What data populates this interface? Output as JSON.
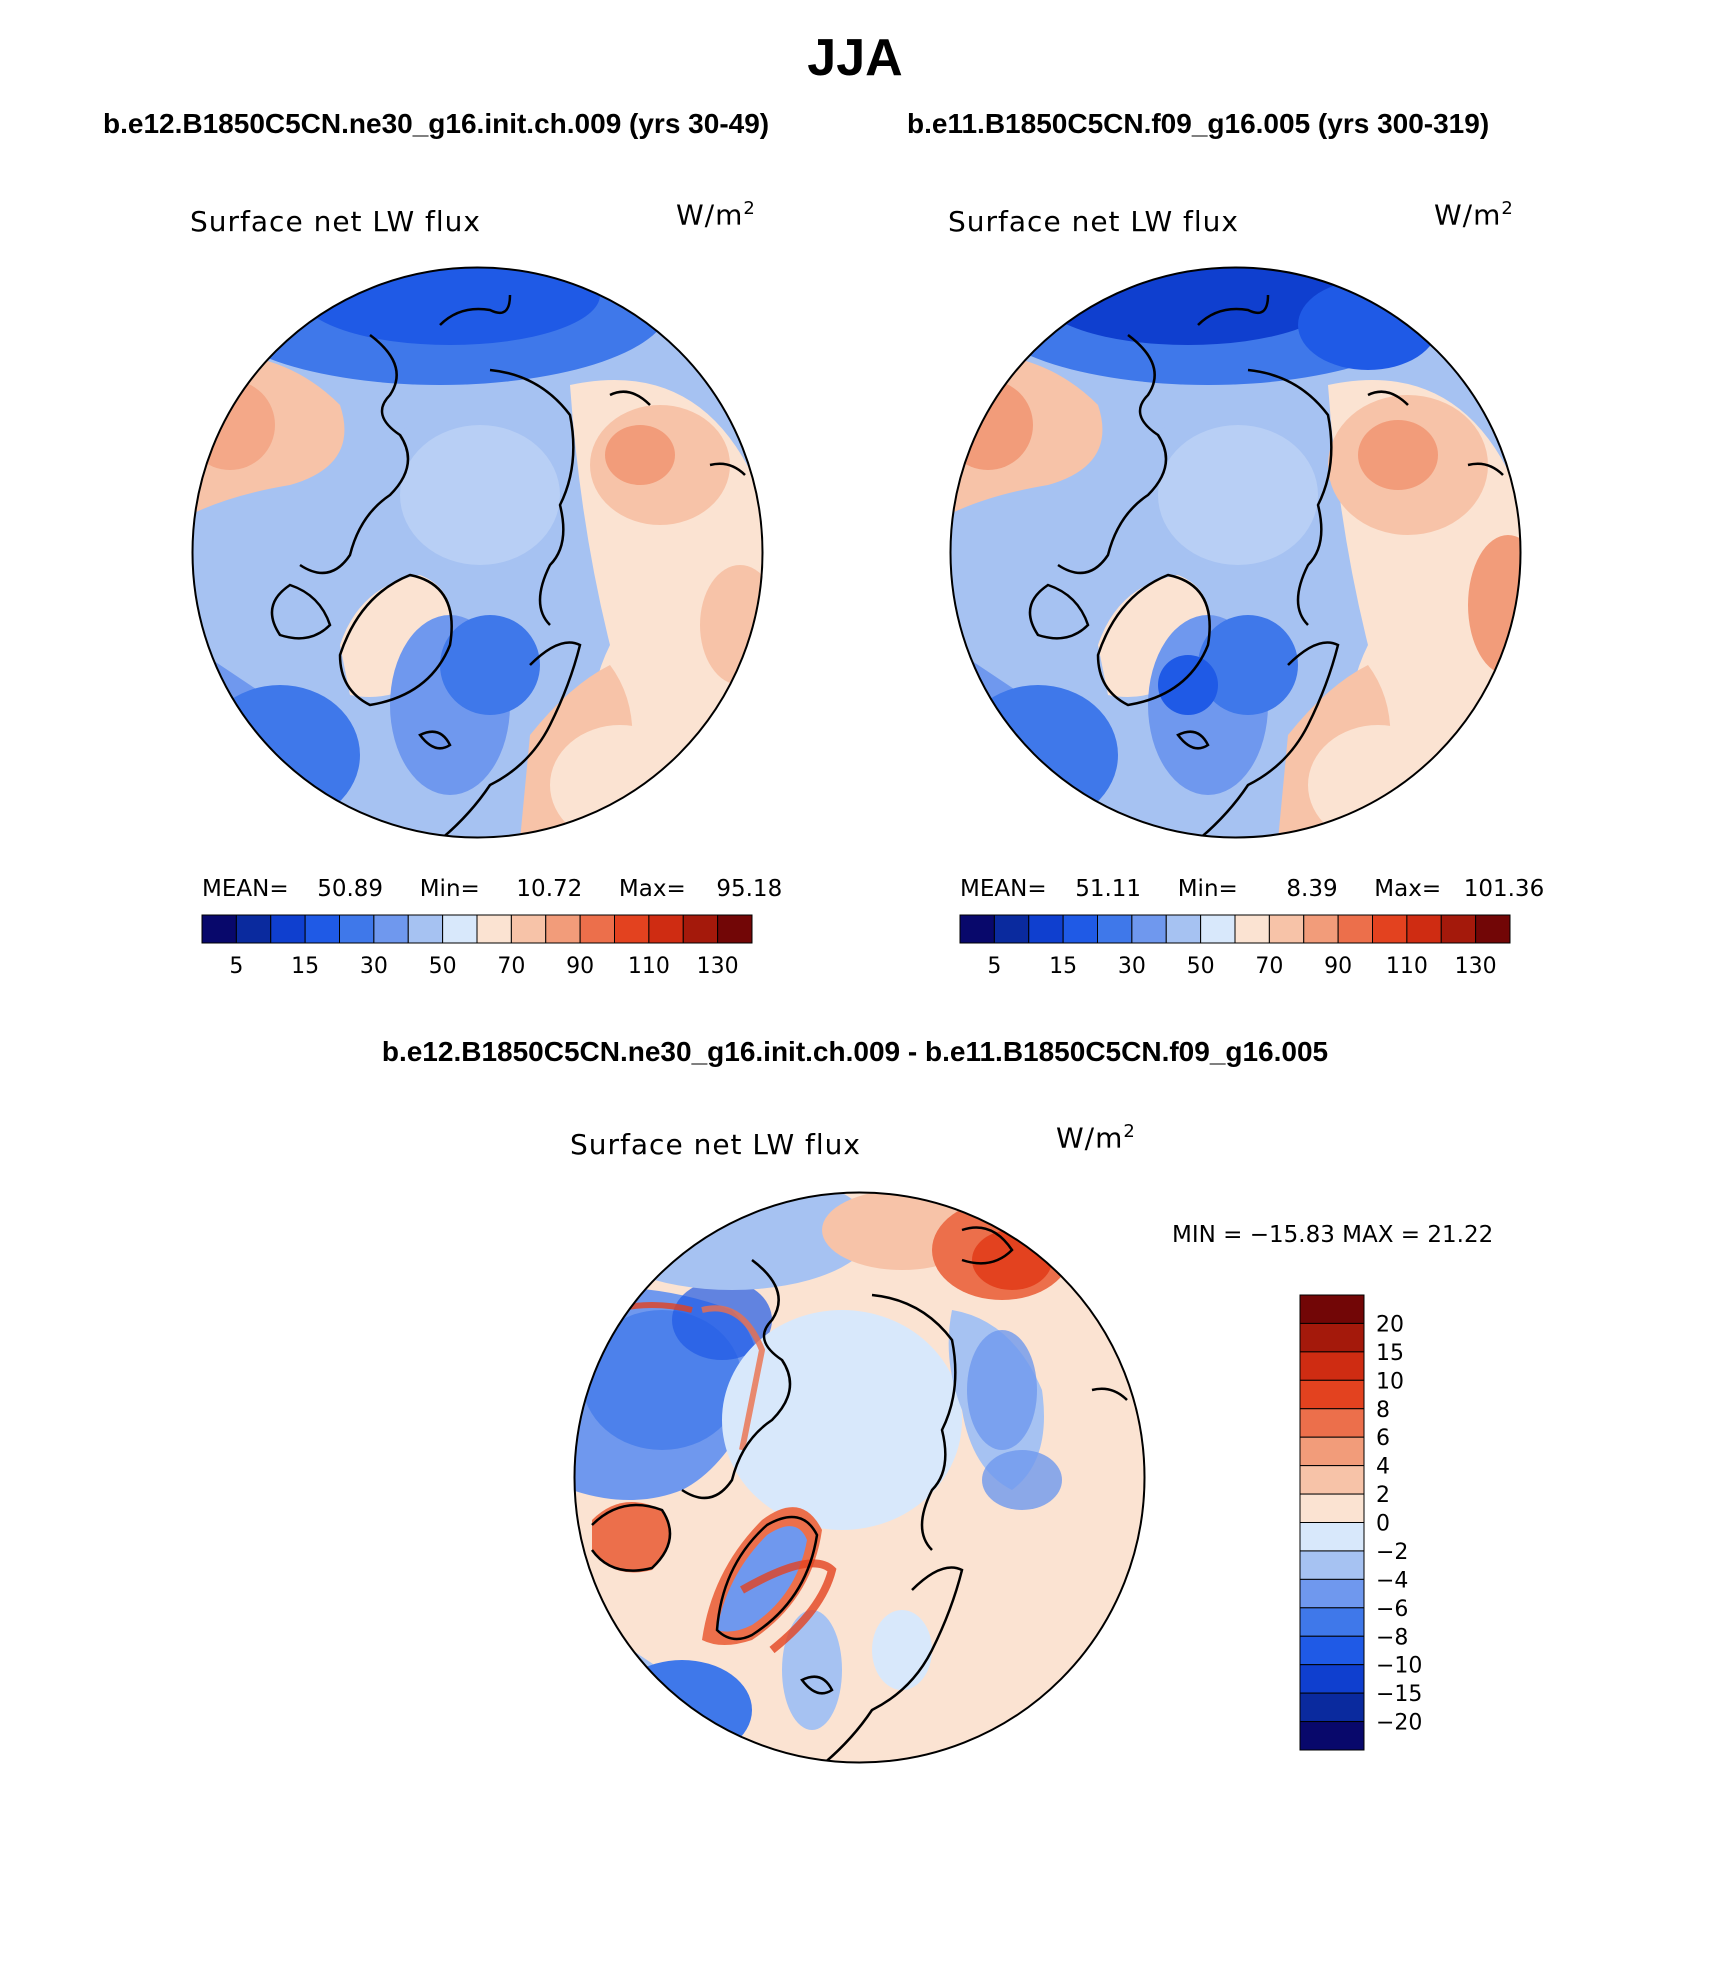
{
  "page_title": "JJA",
  "panels": [
    {
      "case": "b.e12.B1850C5CN.ne30_g16.init.ch.009 (yrs 30-49)",
      "variable": "Surface net LW flux",
      "units": "W/m",
      "units_exp": "2",
      "stats": {
        "mean_label": "MEAN=",
        "mean": "50.89",
        "min_label": "Min=",
        "min": "10.72",
        "max_label": "Max=",
        "max": "95.18"
      }
    },
    {
      "case": "b.e11.B1850C5CN.f09_g16.005 (yrs 300-319)",
      "variable": "Surface net LW flux",
      "units": "W/m",
      "units_exp": "2",
      "stats": {
        "mean_label": "MEAN=",
        "mean": "51.11",
        "min_label": "Min=",
        "min": "8.39",
        "max_label": "Max=",
        "max": "101.36"
      }
    }
  ],
  "difference": {
    "title": "b.e12.B1850C5CN.ne30_g16.init.ch.009 - b.e11.B1850C5CN.f09_g16.005",
    "variable": "Surface net LW flux",
    "units": "W/m",
    "units_exp": "2",
    "minmax": "MIN = −15.83 MAX =  21.22"
  },
  "colorbar_abs": {
    "colors": [
      "#08086b",
      "#0a2a9e",
      "#0f3fcf",
      "#1f5ae6",
      "#3f78ea",
      "#6f98ee",
      "#a6c2f2",
      "#d8e8fb",
      "#fbe3d2",
      "#f7c3a8",
      "#f29c7a",
      "#ec6f4b",
      "#e3421f",
      "#cf2c12",
      "#a4190b",
      "#720606"
    ],
    "tick_labels": [
      "5",
      "15",
      "30",
      "50",
      "70",
      "90",
      "110",
      "130"
    ]
  },
  "colorbar_diff": {
    "colors": [
      "#720606",
      "#a4190b",
      "#cf2c12",
      "#e3421f",
      "#ec6f4b",
      "#f29c7a",
      "#f7c3a8",
      "#fbe3d2",
      "#d8e8fb",
      "#a6c2f2",
      "#6f98ee",
      "#3f78ea",
      "#1f5ae6",
      "#0f3fcf",
      "#0a2a9e",
      "#08086b"
    ],
    "tick_labels": [
      "20",
      "15",
      "10",
      "8",
      "6",
      "4",
      "2",
      "0",
      "−2",
      "−4",
      "−6",
      "−8",
      "−10",
      "−15",
      "−20"
    ]
  }
}
